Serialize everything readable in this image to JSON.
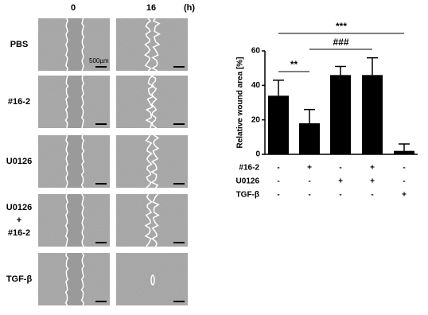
{
  "figure": {
    "time_labels": [
      "0",
      "16"
    ],
    "time_unit": "(h)",
    "rows": [
      [
        "PBS"
      ],
      [
        "#16-2"
      ],
      [
        "U0126"
      ],
      [
        "U0126",
        "+",
        "#16-2"
      ],
      [
        "TGF-β"
      ]
    ],
    "scale_label": "500µm"
  },
  "chart_data": {
    "type": "bar",
    "y_label": "Relative wound area [%]",
    "categories": [
      null,
      null,
      null,
      null,
      null
    ],
    "values": [
      34,
      18,
      46,
      46,
      2
    ],
    "errors": [
      9,
      8,
      5,
      10,
      4
    ],
    "color": "#000000",
    "ylim": [
      0,
      60
    ],
    "yticks": [
      0,
      20,
      40,
      60
    ],
    "conditions": [
      {
        "name": "#16-2",
        "signs": [
          "-",
          "+",
          "-",
          "+",
          "-"
        ]
      },
      {
        "name": "U0126",
        "signs": [
          "-",
          "-",
          "+",
          "+",
          "-"
        ]
      },
      {
        "name": "TGF-β",
        "signs": [
          "-",
          "-",
          "-",
          "-",
          "+"
        ]
      }
    ],
    "annotations": [
      "***",
      "###",
      "**"
    ]
  }
}
